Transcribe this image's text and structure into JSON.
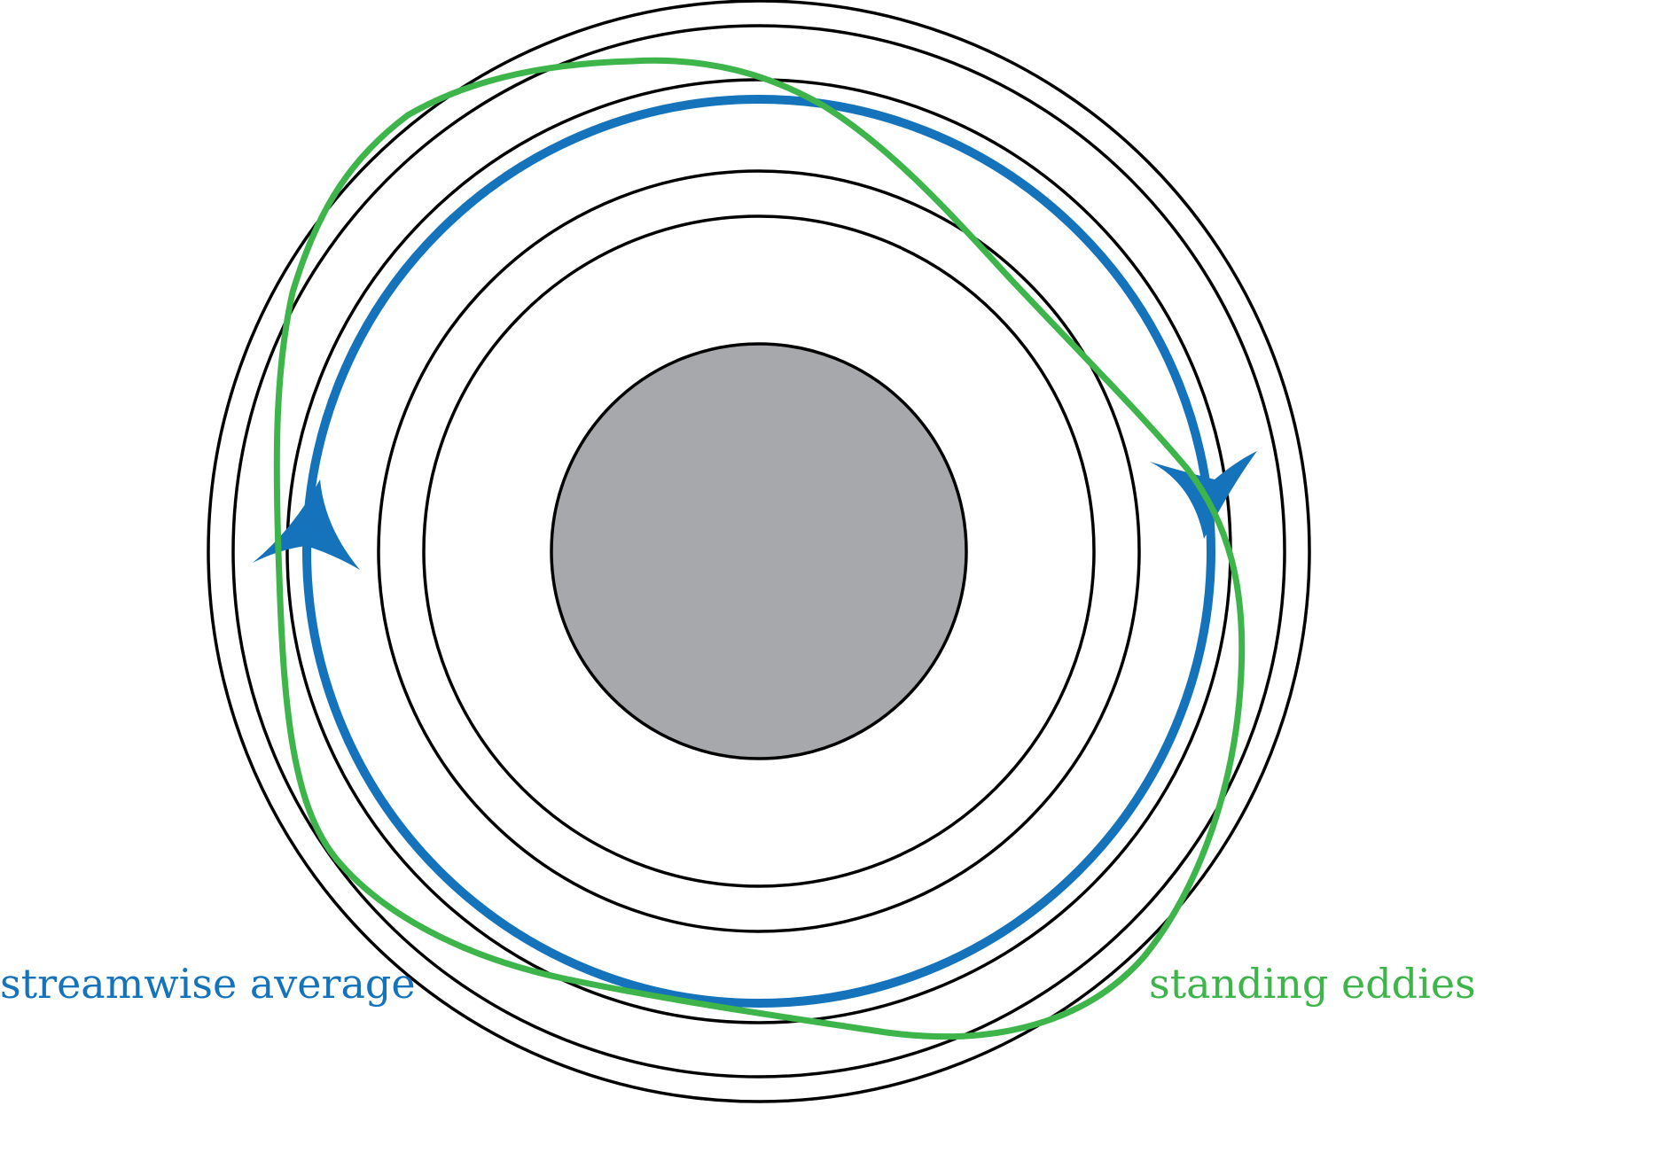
{
  "labels": {
    "streamwise": "streamwise average",
    "eddies": "standing eddies"
  },
  "colors": {
    "streamwise": "#1473bb",
    "eddies": "#3db54a",
    "contours": "#000000",
    "core_fill": "#a7a8ab"
  },
  "icons": {
    "streamwise_arrows": "arrowhead",
    "eddies_line": "wavy-closed-streamline"
  }
}
